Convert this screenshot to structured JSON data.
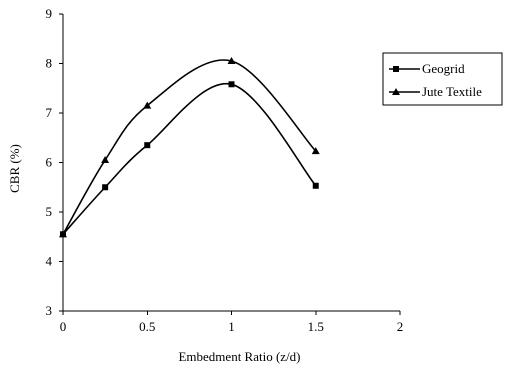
{
  "chart_data": {
    "type": "line",
    "xlabel": "Embedment Ratio (z/d)",
    "ylabel": "CBR (%)",
    "xlim": [
      0,
      2
    ],
    "ylim": [
      3,
      9
    ],
    "xticks": [
      "0",
      "0.5",
      "1",
      "1.5",
      "2"
    ],
    "yticks": [
      "3",
      "4",
      "5",
      "6",
      "7",
      "8",
      "9"
    ],
    "grid": false,
    "smooth": true,
    "legend": {
      "placement": "right"
    },
    "series": [
      {
        "name": "Geogrid",
        "marker": "square",
        "color": "#000000",
        "x": [
          0,
          0.25,
          0.5,
          1,
          1.5
        ],
        "y": [
          4.55,
          5.5,
          6.35,
          7.58,
          5.53
        ]
      },
      {
        "name": "Jute Textile",
        "marker": "triangle",
        "color": "#000000",
        "x": [
          0,
          0.25,
          0.5,
          1,
          1.5
        ],
        "y": [
          4.55,
          6.05,
          7.15,
          8.05,
          6.23
        ]
      }
    ]
  }
}
